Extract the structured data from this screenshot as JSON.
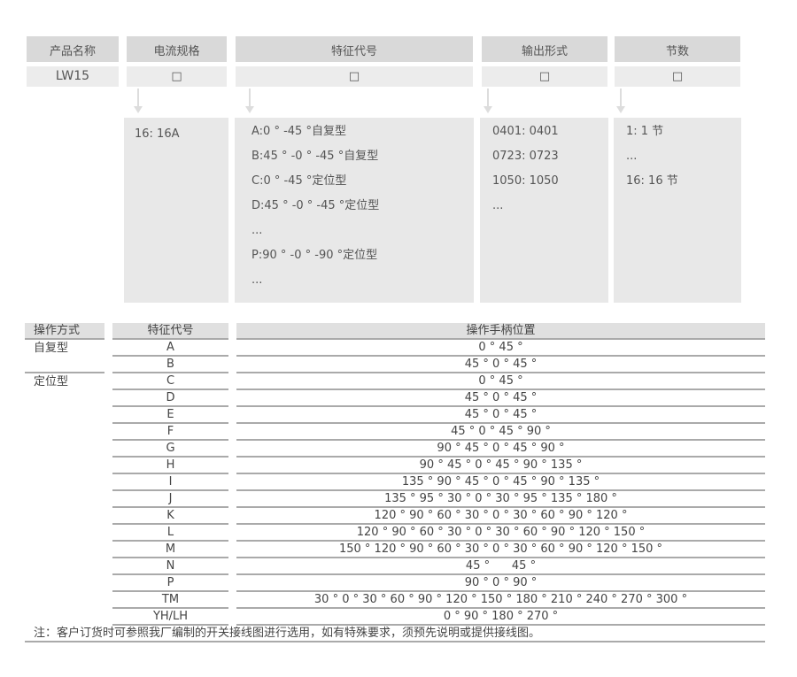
{
  "selector": {
    "headers": [
      "产品名称",
      "电流规格",
      "特征代号",
      "输出形式",
      "节数"
    ],
    "values": [
      "LW15",
      "□",
      "□",
      "□",
      "□"
    ],
    "current_options": [
      "16: 16A"
    ],
    "feature_options": [
      "A:0 ° -45 °自复型",
      "B:45 ° -0 ° -45 °自复型",
      "C:0 ° -45 °定位型",
      "D:45 ° -0 ° -45 °定位型",
      "...",
      "P:90 ° -0 ° -90 °定位型",
      "..."
    ],
    "output_options": [
      "0401: 0401",
      "0723: 0723",
      "1050: 1050",
      "..."
    ],
    "section_options": [
      "1: 1 节",
      "...",
      "16: 16 节"
    ]
  },
  "table": {
    "headers": [
      "操作方式",
      "特征代号",
      "操作手柄位置"
    ],
    "groups": [
      "自复型",
      "定位型"
    ],
    "rows": [
      {
        "code": "A",
        "pos": "0 ° 45 °"
      },
      {
        "code": "B",
        "pos": "45 ° 0 ° 45 °"
      },
      {
        "code": "C",
        "pos": "0 ° 45 °"
      },
      {
        "code": "D",
        "pos": "45 ° 0 ° 45 °"
      },
      {
        "code": "E",
        "pos": "45 ° 0 ° 45 °"
      },
      {
        "code": "F",
        "pos": "45 ° 0 ° 45 ° 90 °"
      },
      {
        "code": "G",
        "pos": "90 ° 45 ° 0 ° 45 ° 90 °"
      },
      {
        "code": "H",
        "pos": "90 ° 45 ° 0 ° 45 ° 90 ° 135 °"
      },
      {
        "code": "I",
        "pos": "135 ° 90 ° 45 ° 0 ° 45 ° 90 ° 135 °"
      },
      {
        "code": "J",
        "pos": "135 ° 95 ° 30 ° 0 ° 30 ° 95 ° 135 ° 180 °"
      },
      {
        "code": "K",
        "pos": "120 ° 90 ° 60 ° 30 ° 0 ° 30 ° 60 ° 90 ° 120 °"
      },
      {
        "code": "L",
        "pos": "120 ° 90 ° 60 ° 30 ° 0 ° 30 ° 60 ° 90 ° 120 ° 150 °"
      },
      {
        "code": "M",
        "pos": "150 ° 120 ° 90 ° 60 ° 30 ° 0 ° 30 ° 60 ° 90 ° 120 ° 150 °"
      },
      {
        "code": "N",
        "pos": "45 °      45 °"
      },
      {
        "code": "P",
        "pos": "90 ° 0 ° 90 °"
      },
      {
        "code": "TM",
        "pos": "30 ° 0 ° 30 ° 60 ° 90 ° 120 ° 150 ° 180 ° 210 ° 240 ° 270 ° 300 °"
      },
      {
        "code": "YH/LH",
        "pos": "0 ° 90 ° 180 ° 270 °"
      }
    ],
    "note": "注：客户订货时可参照我厂编制的开关接线图进行选用，如有特殊要求，须预先说明或提供接线图。"
  }
}
